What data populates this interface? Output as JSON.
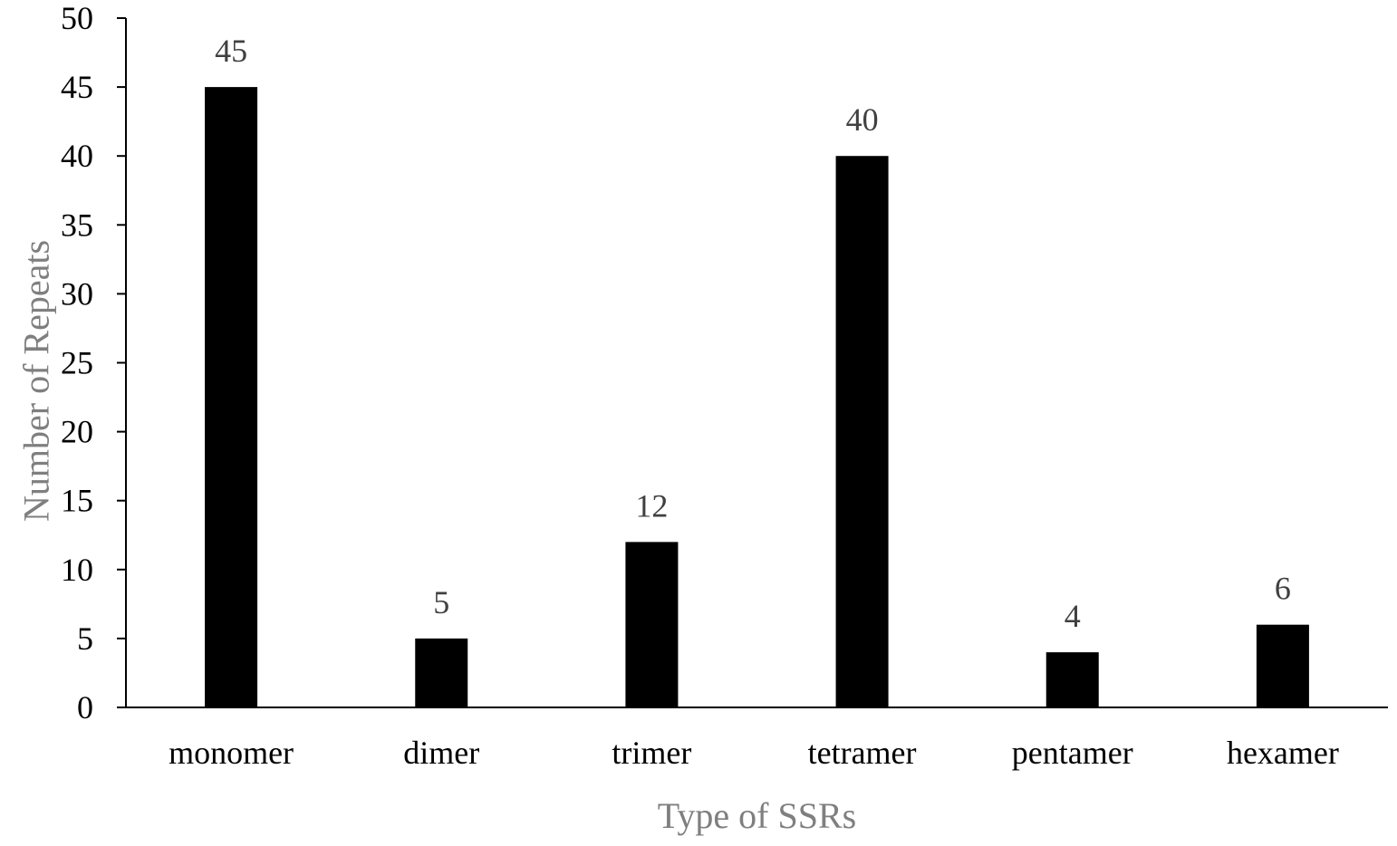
{
  "chart_data": {
    "type": "bar",
    "title": "",
    "xlabel": "Type of SSRs",
    "ylabel": "Number of Repeats",
    "categories": [
      "monomer",
      "dimer",
      "trimer",
      "tetramer",
      "pentamer",
      "hexamer"
    ],
    "values": [
      45,
      5,
      12,
      40,
      4,
      6
    ],
    "data_labels": [
      "45",
      "5",
      "12",
      "40",
      "4",
      "6"
    ],
    "ylim": [
      0,
      50
    ],
    "yticks": [
      0,
      5,
      10,
      15,
      20,
      25,
      30,
      35,
      40,
      45,
      50
    ],
    "grid": false,
    "legend": "none",
    "colors": {
      "bar": "#000000",
      "axis": "#000000",
      "data_label": "#404040",
      "axis_title": "#7f7f7f"
    }
  }
}
